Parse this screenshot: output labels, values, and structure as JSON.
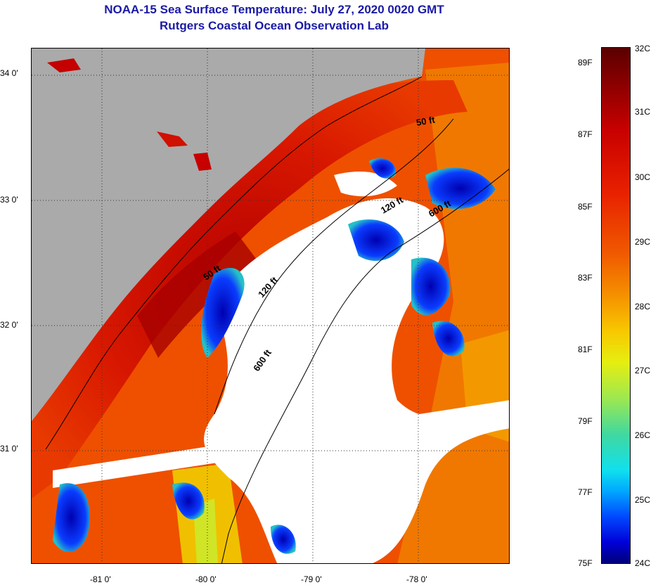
{
  "header": {
    "title": "NOAA-15 Sea Surface Temperature:  July 27, 2020 0020 GMT",
    "subtitle": "Rutgers Coastal Ocean Observation Lab"
  },
  "map": {
    "longitude_labels": [
      "-81 0'",
      "-80 0'",
      "-79 0'",
      "-78 0'"
    ],
    "latitude_labels": [
      "34 0'",
      "33 0'",
      "32 0'",
      "31 0'"
    ],
    "depth_contours": [
      "50 ft",
      "50 ft",
      "120 ft",
      "120 ft",
      "600 ft",
      "600 ft"
    ],
    "colors": {
      "land": "#aaaaaa",
      "cloud": "#ffffff",
      "warm": "#e02a00",
      "cool": "#0010c8"
    }
  },
  "colorbar": {
    "celsius": [
      "32C",
      "31C",
      "30C",
      "29C",
      "28C",
      "27C",
      "26C",
      "25C",
      "24C"
    ],
    "fahrenheit": [
      "89F",
      "87F",
      "85F",
      "83F",
      "81F",
      "79F",
      "77F",
      "75F"
    ]
  }
}
